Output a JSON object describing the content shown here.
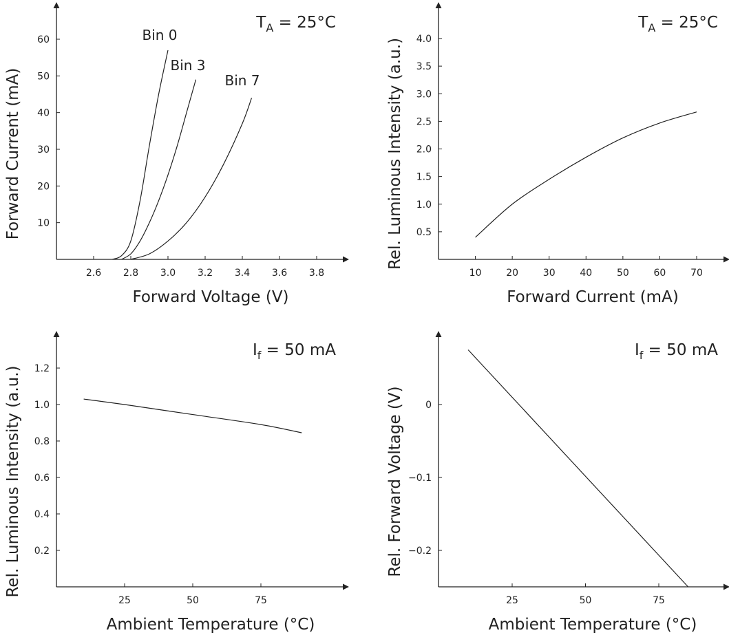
{
  "chart_data": [
    {
      "type": "line",
      "title": "",
      "annotation": "T_A = 25°C",
      "xlabel": "Forward Voltage (V)",
      "ylabel": "Forward Current (mA)",
      "xlim": [
        2.4,
        4.0
      ],
      "ylim": [
        0,
        65
      ],
      "xticks": [
        2.6,
        2.8,
        3.0,
        3.2,
        3.4,
        3.6,
        3.8
      ],
      "xtick_labels": [
        "2.6",
        "2.8",
        "3.0",
        "3.2",
        "3.4",
        "3.6",
        "3.8"
      ],
      "yticks": [
        10,
        20,
        30,
        40,
        50,
        60
      ],
      "ytick_labels": [
        "10",
        "20",
        "30",
        "40",
        "50",
        "60"
      ],
      "series": [
        {
          "name": "Bin 0",
          "x": [
            2.7,
            2.75,
            2.8,
            2.85,
            2.9,
            2.95,
            3.0
          ],
          "y": [
            0,
            1,
            5,
            16,
            31,
            45,
            57
          ]
        },
        {
          "name": "Bin 3",
          "x": [
            2.75,
            2.8,
            2.85,
            2.9,
            2.95,
            3.0,
            3.05,
            3.1,
            3.15
          ],
          "y": [
            0,
            1.5,
            5,
            10,
            16,
            23,
            31,
            40,
            49
          ]
        },
        {
          "name": "Bin 7",
          "x": [
            2.8,
            2.9,
            3.0,
            3.1,
            3.2,
            3.3,
            3.4,
            3.45
          ],
          "y": [
            0,
            1.5,
            5,
            10,
            17,
            26,
            37,
            44
          ]
        }
      ]
    },
    {
      "type": "line",
      "title": "",
      "annotation": "T_A = 25°C",
      "xlabel": "Forward Current (mA)",
      "ylabel": "Rel. Luminous Intensity (a.u.)",
      "xlim": [
        0,
        80
      ],
      "ylim": [
        0,
        4.5
      ],
      "xticks": [
        10,
        20,
        30,
        40,
        50,
        60,
        70
      ],
      "xtick_labels": [
        "10",
        "20",
        "30",
        "40",
        "50",
        "60",
        "70"
      ],
      "yticks": [
        0.5,
        1.0,
        1.5,
        2.0,
        2.5,
        3.0,
        3.5,
        4.0
      ],
      "ytick_labels": [
        "0.5",
        "1.0",
        "1.5",
        "2.0",
        "2.5",
        "3.0",
        "3.5",
        "4.0"
      ],
      "series": [
        {
          "x": [
            10,
            20,
            30,
            40,
            50,
            60,
            70
          ],
          "y": [
            0.4,
            1.0,
            1.45,
            1.85,
            2.2,
            2.47,
            2.67
          ]
        }
      ]
    },
    {
      "type": "line",
      "title": "",
      "annotation": "I_f = 50 mA",
      "xlabel": "Ambient Temperature (°C)",
      "ylabel": "Rel. Luminous Intensity (a.u.)",
      "xlim": [
        0,
        100
      ],
      "ylim": [
        0,
        1.35
      ],
      "xticks": [
        25,
        50,
        75
      ],
      "xtick_labels": [
        "25",
        "50",
        "75"
      ],
      "yticks": [
        0.2,
        0.4,
        0.6,
        0.8,
        1.0,
        1.2
      ],
      "ytick_labels": [
        "0.2",
        "0.4",
        "0.6",
        "0.8",
        "1.0",
        "1.2"
      ],
      "series": [
        {
          "x": [
            10,
            25,
            50,
            75,
            90
          ],
          "y": [
            1.03,
            1.0,
            0.945,
            0.89,
            0.845
          ]
        }
      ]
    },
    {
      "type": "line",
      "title": "",
      "annotation": "I_f = 50 mA",
      "xlabel": "Ambient Temperature (°C)",
      "ylabel": "Rel. Forward Voltage (V)",
      "xlim": [
        0,
        100
      ],
      "ylim": [
        -0.25,
        0.09
      ],
      "xticks": [
        25,
        50,
        75
      ],
      "xtick_labels": [
        "25",
        "50",
        "75"
      ],
      "yticks": [
        -0.2,
        -0.1,
        0
      ],
      "ytick_labels": [
        "−0.2",
        "−0.1",
        "0"
      ],
      "series": [
        {
          "x": [
            10,
            85
          ],
          "y": [
            0.075,
            -0.25
          ]
        }
      ]
    }
  ]
}
